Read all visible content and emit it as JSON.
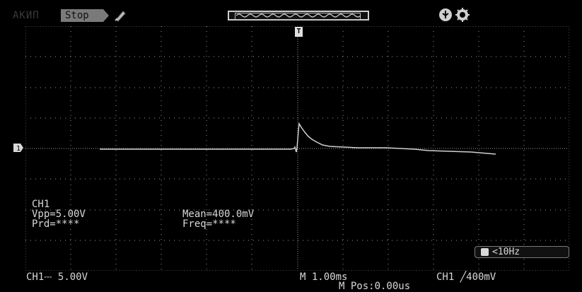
{
  "header": {
    "brand": "АКИП",
    "run_state": "Stop"
  },
  "icons": {
    "probe": "probe-icon",
    "usb": "usb-icon",
    "settings": "gear-icon",
    "trigger_marker": "trigger-position-marker",
    "channel_marker": "channel-ground-marker"
  },
  "trigger": {
    "marker_label": "T"
  },
  "measurements": {
    "channel": "CH1",
    "vpp": "Vpp=5.00V",
    "prd": "Prd=****",
    "mean": "Mean=400.0mV",
    "freq": "Freq=****"
  },
  "freq_counter": "<10Hz",
  "footer": {
    "ch_scale": "CH1⎓ 5.00V",
    "timebase": "M 1.00ms",
    "trigger_setting": "CH1 ╱400mV",
    "m_pos": "M Pos:0.00us"
  },
  "colors": {
    "background": "#000000",
    "grid": "#9a9a9a",
    "trace": "#d0d0d0"
  }
}
